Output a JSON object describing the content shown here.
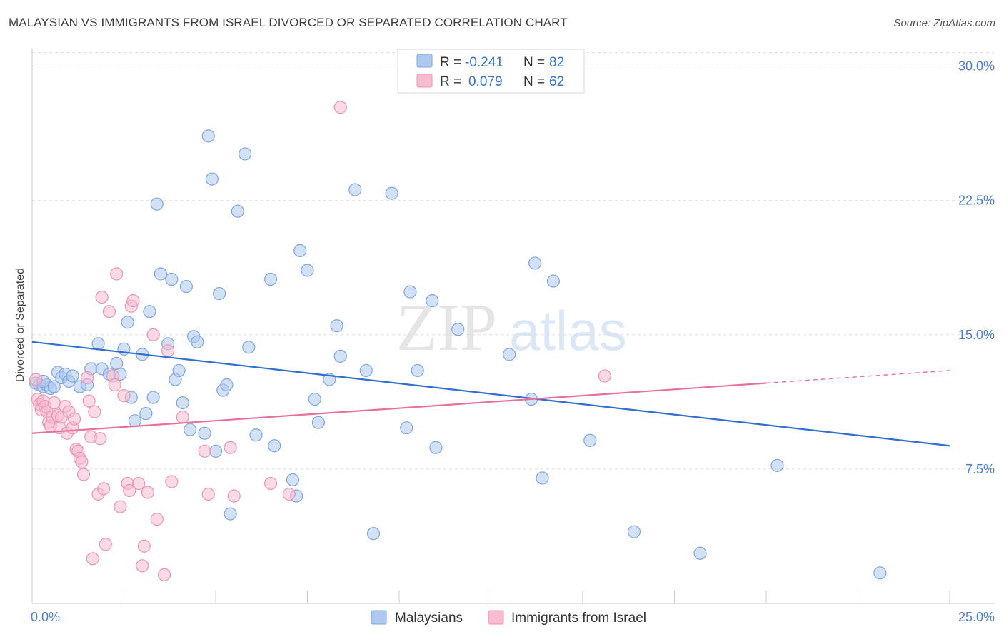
{
  "title": "MALAYSIAN VS IMMIGRANTS FROM ISRAEL DIVORCED OR SEPARATED CORRELATION CHART",
  "source": "Source: ZipAtlas.com",
  "watermark": {
    "zip": "ZIP",
    "atlas": "atlas"
  },
  "colors": {
    "blue_fill": "#aec8f0",
    "blue_stroke": "#7ea6e0",
    "blue_line": "#2f6fd0",
    "pink_fill": "#f6bcd0",
    "pink_stroke": "#ee93b3",
    "pink_line": "#e8709a",
    "tick_text": "#4a7fd0",
    "grid": "#dddddd"
  },
  "legend": {
    "rows": [
      {
        "r_label": "R =",
        "r_value": "-0.241",
        "n_label": "N =",
        "n_value": "82"
      },
      {
        "r_label": "R =",
        "r_value": "0.079",
        "n_label": "N =",
        "n_value": "62"
      }
    ]
  },
  "chart_data": {
    "type": "scatter",
    "title": "MALAYSIAN VS IMMIGRANTS FROM ISRAEL DIVORCED OR SEPARATED CORRELATION CHART",
    "xlabel": "",
    "ylabel": "Divorced or Separated",
    "xlim": [
      0,
      25
    ],
    "ylim": [
      0,
      30.5
    ],
    "x_tick_labels": [
      "0.0%",
      "25.0%"
    ],
    "y_ticks": [
      7.5,
      15.0,
      22.5,
      30.0
    ],
    "y_tick_labels": [
      "7.5%",
      "15.0%",
      "22.5%",
      "30.0%"
    ],
    "grid": true,
    "legend_position": "top-center",
    "series": [
      {
        "name": "Malaysians",
        "color": "blue",
        "r": -0.241,
        "n": 82,
        "trend": {
          "x0": 0,
          "y0": 14.6,
          "x1": 25,
          "y1": 8.8
        },
        "points": [
          [
            0.1,
            12.3
          ],
          [
            0.2,
            12.2
          ],
          [
            0.3,
            12.1
          ],
          [
            0.4,
            12.2
          ],
          [
            0.5,
            12.0
          ],
          [
            0.6,
            12.1
          ],
          [
            0.7,
            12.9
          ],
          [
            0.8,
            12.6
          ],
          [
            0.9,
            12.8
          ],
          [
            1.0,
            12.4
          ],
          [
            1.1,
            12.7
          ],
          [
            1.3,
            12.1
          ],
          [
            1.5,
            12.2
          ],
          [
            1.6,
            13.1
          ],
          [
            1.8,
            14.5
          ],
          [
            1.9,
            13.1
          ],
          [
            2.1,
            12.8
          ],
          [
            2.3,
            13.4
          ],
          [
            2.4,
            12.8
          ],
          [
            2.5,
            14.2
          ],
          [
            2.6,
            15.7
          ],
          [
            2.7,
            11.5
          ],
          [
            2.8,
            10.2
          ],
          [
            3.0,
            13.9
          ],
          [
            3.1,
            10.6
          ],
          [
            3.2,
            16.3
          ],
          [
            3.3,
            11.5
          ],
          [
            3.4,
            22.3
          ],
          [
            3.5,
            18.4
          ],
          [
            3.7,
            14.5
          ],
          [
            3.8,
            18.1
          ],
          [
            3.9,
            12.5
          ],
          [
            4.0,
            13.0
          ],
          [
            4.1,
            11.2
          ],
          [
            4.2,
            17.7
          ],
          [
            4.3,
            9.7
          ],
          [
            4.4,
            14.9
          ],
          [
            4.5,
            14.6
          ],
          [
            4.7,
            9.5
          ],
          [
            4.8,
            26.1
          ],
          [
            4.9,
            23.7
          ],
          [
            5.0,
            8.5
          ],
          [
            5.1,
            17.3
          ],
          [
            5.2,
            11.9
          ],
          [
            5.3,
            12.2
          ],
          [
            5.4,
            5.0
          ],
          [
            5.6,
            21.9
          ],
          [
            5.8,
            25.1
          ],
          [
            5.9,
            14.3
          ],
          [
            6.1,
            9.4
          ],
          [
            6.5,
            18.1
          ],
          [
            6.6,
            8.8
          ],
          [
            7.1,
            6.9
          ],
          [
            7.2,
            6.0
          ],
          [
            7.3,
            19.7
          ],
          [
            7.5,
            18.6
          ],
          [
            7.7,
            11.4
          ],
          [
            7.8,
            10.1
          ],
          [
            8.1,
            12.5
          ],
          [
            8.3,
            15.5
          ],
          [
            8.4,
            13.8
          ],
          [
            8.8,
            23.1
          ],
          [
            9.1,
            13.0
          ],
          [
            9.3,
            3.9
          ],
          [
            9.8,
            22.9
          ],
          [
            10.2,
            9.8
          ],
          [
            10.3,
            17.4
          ],
          [
            10.5,
            13.0
          ],
          [
            10.9,
            16.9
          ],
          [
            11.0,
            8.7
          ],
          [
            11.6,
            15.3
          ],
          [
            13.0,
            13.9
          ],
          [
            13.6,
            11.4
          ],
          [
            13.7,
            19.0
          ],
          [
            13.9,
            7.0
          ],
          [
            14.2,
            18.0
          ],
          [
            15.2,
            9.1
          ],
          [
            16.4,
            4.0
          ],
          [
            18.2,
            2.8
          ],
          [
            20.3,
            7.7
          ],
          [
            23.1,
            1.7
          ],
          [
            0.3,
            12.4
          ]
        ]
      },
      {
        "name": "Immigrants from Israel",
        "color": "pink",
        "r": 0.079,
        "n": 62,
        "trend": {
          "x0": 0,
          "y0": 9.5,
          "x1": 20,
          "y1": 12.3,
          "dash_x1": 25,
          "dash_y1": 13.0
        },
        "points": [
          [
            0.1,
            12.5
          ],
          [
            0.15,
            11.4
          ],
          [
            0.2,
            11.1
          ],
          [
            0.25,
            10.8
          ],
          [
            0.3,
            11.3
          ],
          [
            0.35,
            11.0
          ],
          [
            0.4,
            10.7
          ],
          [
            0.45,
            10.1
          ],
          [
            0.5,
            9.9
          ],
          [
            0.55,
            10.4
          ],
          [
            0.6,
            11.2
          ],
          [
            0.7,
            10.5
          ],
          [
            0.75,
            9.8
          ],
          [
            0.8,
            10.4
          ],
          [
            0.9,
            11.0
          ],
          [
            0.95,
            9.5
          ],
          [
            1.0,
            10.7
          ],
          [
            1.1,
            9.8
          ],
          [
            1.15,
            10.3
          ],
          [
            1.2,
            8.6
          ],
          [
            1.25,
            8.5
          ],
          [
            1.3,
            8.1
          ],
          [
            1.35,
            7.9
          ],
          [
            1.4,
            7.2
          ],
          [
            1.5,
            12.6
          ],
          [
            1.55,
            11.3
          ],
          [
            1.6,
            9.3
          ],
          [
            1.65,
            2.5
          ],
          [
            1.7,
            10.7
          ],
          [
            1.8,
            6.1
          ],
          [
            1.85,
            9.2
          ],
          [
            1.9,
            17.1
          ],
          [
            1.95,
            6.4
          ],
          [
            2.0,
            3.3
          ],
          [
            2.1,
            16.3
          ],
          [
            2.2,
            12.7
          ],
          [
            2.25,
            12.2
          ],
          [
            2.3,
            18.4
          ],
          [
            2.4,
            5.4
          ],
          [
            2.5,
            11.6
          ],
          [
            2.6,
            6.7
          ],
          [
            2.65,
            6.3
          ],
          [
            2.7,
            16.6
          ],
          [
            2.75,
            16.9
          ],
          [
            2.9,
            6.7
          ],
          [
            3.0,
            2.1
          ],
          [
            3.05,
            3.2
          ],
          [
            3.15,
            6.2
          ],
          [
            3.3,
            15.0
          ],
          [
            3.4,
            4.7
          ],
          [
            3.6,
            1.6
          ],
          [
            3.7,
            14.1
          ],
          [
            3.8,
            6.8
          ],
          [
            4.1,
            10.4
          ],
          [
            4.7,
            8.5
          ],
          [
            4.8,
            6.1
          ],
          [
            5.4,
            8.7
          ],
          [
            5.5,
            6.0
          ],
          [
            6.5,
            6.7
          ],
          [
            7.0,
            6.1
          ],
          [
            8.4,
            27.7
          ],
          [
            15.6,
            12.7
          ]
        ]
      }
    ]
  },
  "bottom_legend": [
    "Malaysians",
    "Immigrants from Israel"
  ]
}
